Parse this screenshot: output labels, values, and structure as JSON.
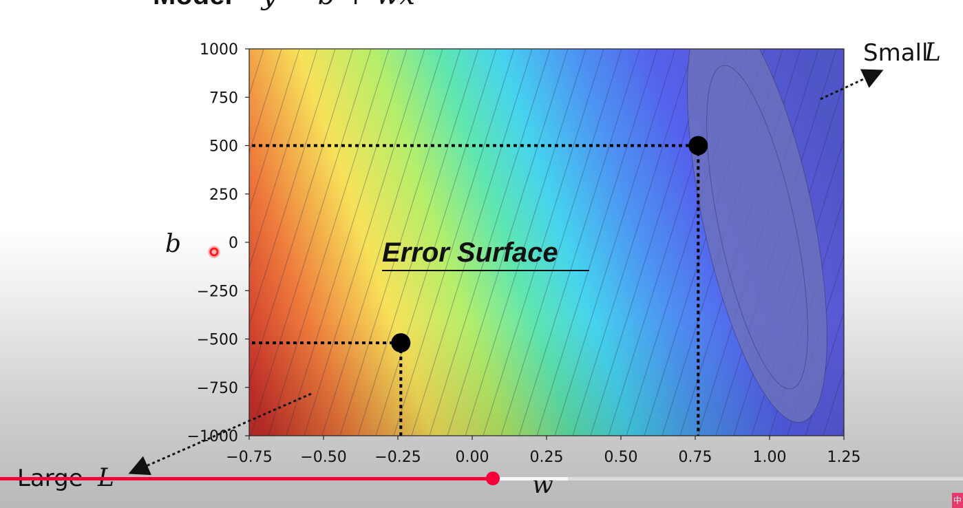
{
  "slide": {
    "model_word": "Model",
    "model_formula_partial": "y = b + wx",
    "y_axis_symbol": "b",
    "x_axis_symbol": "w",
    "surface_label": "Error Surface",
    "small_label": "Small",
    "large_label": "Large",
    "loss_symbol": "L",
    "colors": {
      "pointer_red": "#ff1a1a",
      "marker": "#000000"
    }
  },
  "chart_data": {
    "type": "heatmap",
    "x": {
      "range": [
        -0.75,
        1.25
      ],
      "ticks": [
        "−0.75",
        "−0.50",
        "−0.25",
        "0.00",
        "0.25",
        "0.50",
        "0.75",
        "1.00",
        "1.25"
      ]
    },
    "y": {
      "range": [
        -1000,
        1000
      ],
      "ticks": [
        "1000",
        "750",
        "500",
        "250",
        "0",
        "−250",
        "−500",
        "−750",
        "−1000"
      ]
    },
    "colormap": "jet",
    "points": [
      {
        "w": 0.76,
        "b": 500
      },
      {
        "w": -0.24,
        "b": -520
      }
    ]
  },
  "player": {
    "played_fraction": 0.512,
    "buffered_fraction": 0.59,
    "badge": "中",
    "colors": {
      "progress": "#f5003a"
    }
  }
}
